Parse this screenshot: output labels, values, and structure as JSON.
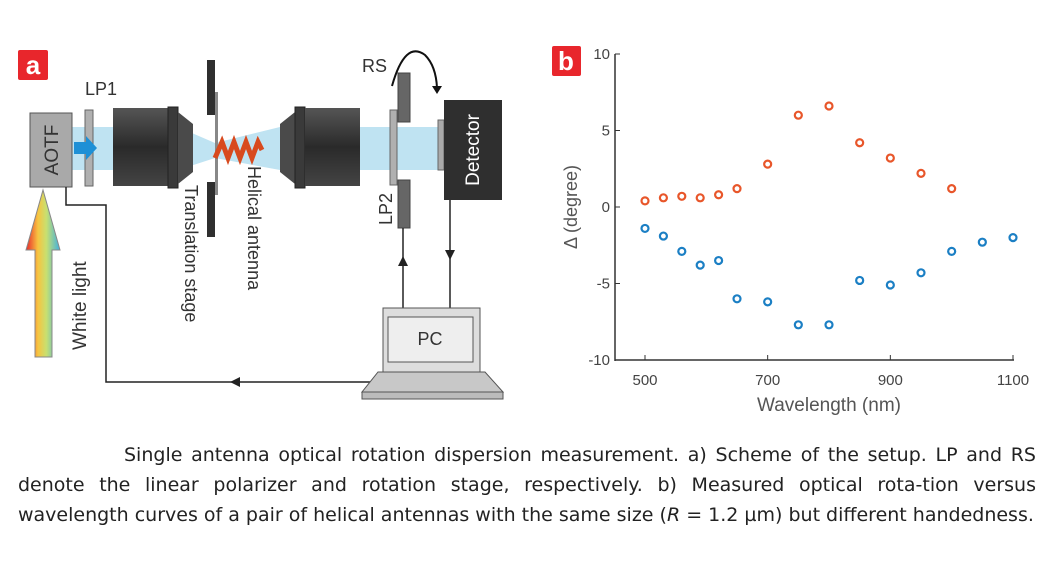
{
  "panel_a": {
    "label": "a",
    "aotf": "AOTF",
    "lp1": "LP1",
    "translation_stage": "Translation stage",
    "helical_antenna": "Helical antenna",
    "rs": "RS",
    "lp2": "LP2",
    "detector": "Detector",
    "pc": "PC",
    "white_light": "White light",
    "colors": {
      "label_bg": "#e8262c",
      "beam": "#bfe3f2",
      "dark": "#2f2f2f",
      "arrow_blue": "#1e90d6"
    }
  },
  "chart_data": {
    "type": "scatter",
    "panel_label": "b",
    "xlabel": "Wavelength (nm)",
    "ylabel": "Δ (degree)",
    "xlim": [
      500,
      1100
    ],
    "ylim": [
      -10,
      10
    ],
    "xticks": [
      500,
      700,
      900,
      1100
    ],
    "yticks": [
      10,
      5,
      0,
      -5,
      -10
    ],
    "ytick_labels": [
      "10",
      "5",
      "0",
      "-5",
      "-10"
    ],
    "grid": false,
    "series": [
      {
        "name": "red",
        "color": "#e8562a",
        "x": [
          500,
          530,
          560,
          590,
          620,
          650,
          700,
          750,
          800,
          850,
          900,
          950,
          1000
        ],
        "y": [
          0.4,
          0.6,
          0.7,
          0.6,
          0.8,
          1.2,
          2.8,
          6.0,
          6.6,
          4.2,
          3.2,
          2.2,
          1.2
        ]
      },
      {
        "name": "blue",
        "color": "#1b7fc4",
        "x": [
          500,
          530,
          560,
          590,
          620,
          650,
          700,
          750,
          800,
          850,
          900,
          950,
          1000,
          1050,
          1100
        ],
        "y": [
          -1.4,
          -1.9,
          -2.9,
          -3.8,
          -3.5,
          -6.0,
          -6.2,
          -7.7,
          -7.7,
          -4.8,
          -5.1,
          -4.3,
          -2.9,
          -2.3,
          -2.0
        ]
      }
    ]
  },
  "caption": {
    "part1": "Single antenna optical rotation dispersion measurement. a) Scheme of the setup. LP and RS denote the linear polarizer and rotation stage, respectively. b) Measured optical rota-tion versus wavelength curves of a pair of helical antennas with the same size (",
    "var": "R",
    "part2": " = 1.2 µm) but different handedness."
  }
}
